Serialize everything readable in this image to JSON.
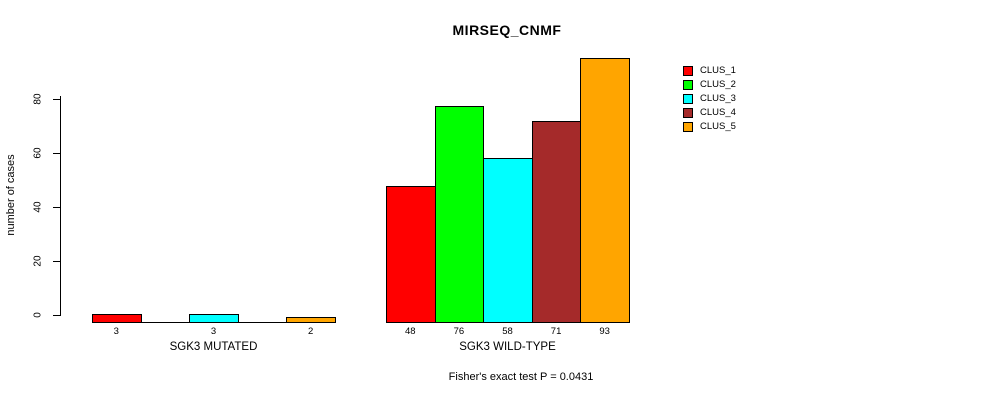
{
  "title": "MIRSEQ_CNMF",
  "footer": "Fisher's exact test P = 0.0431",
  "y_axis": {
    "label": "number of cases",
    "ticks": [
      0,
      20,
      40,
      60,
      80
    ]
  },
  "chart_data": {
    "type": "bar",
    "title": "MIRSEQ_CNMF",
    "ylabel": "number of cases",
    "ylim": [
      0,
      93
    ],
    "grid": false,
    "legend_position": "top-right",
    "categories": [
      "SGK3 MUTATED",
      "SGK3 WILD-TYPE"
    ],
    "series": [
      {
        "name": "CLUS_1",
        "color": "#FF0000",
        "values": [
          3,
          48
        ]
      },
      {
        "name": "CLUS_2",
        "color": "#00FF00",
        "values": [
          0,
          76
        ]
      },
      {
        "name": "CLUS_3",
        "color": "#00FFFF",
        "values": [
          3,
          58
        ]
      },
      {
        "name": "CLUS_4",
        "color": "#A52A2A",
        "values": [
          0,
          71
        ]
      },
      {
        "name": "CLUS_5",
        "color": "#FFA500",
        "values": [
          2,
          93
        ]
      }
    ],
    "bar_labels": {
      "SGK3 MUTATED": [
        "3",
        "3",
        "2"
      ],
      "SGK3 WILD-TYPE": [
        "48",
        "76",
        "58",
        "71",
        "93"
      ]
    },
    "annotation": "Fisher's exact test P = 0.0431"
  }
}
